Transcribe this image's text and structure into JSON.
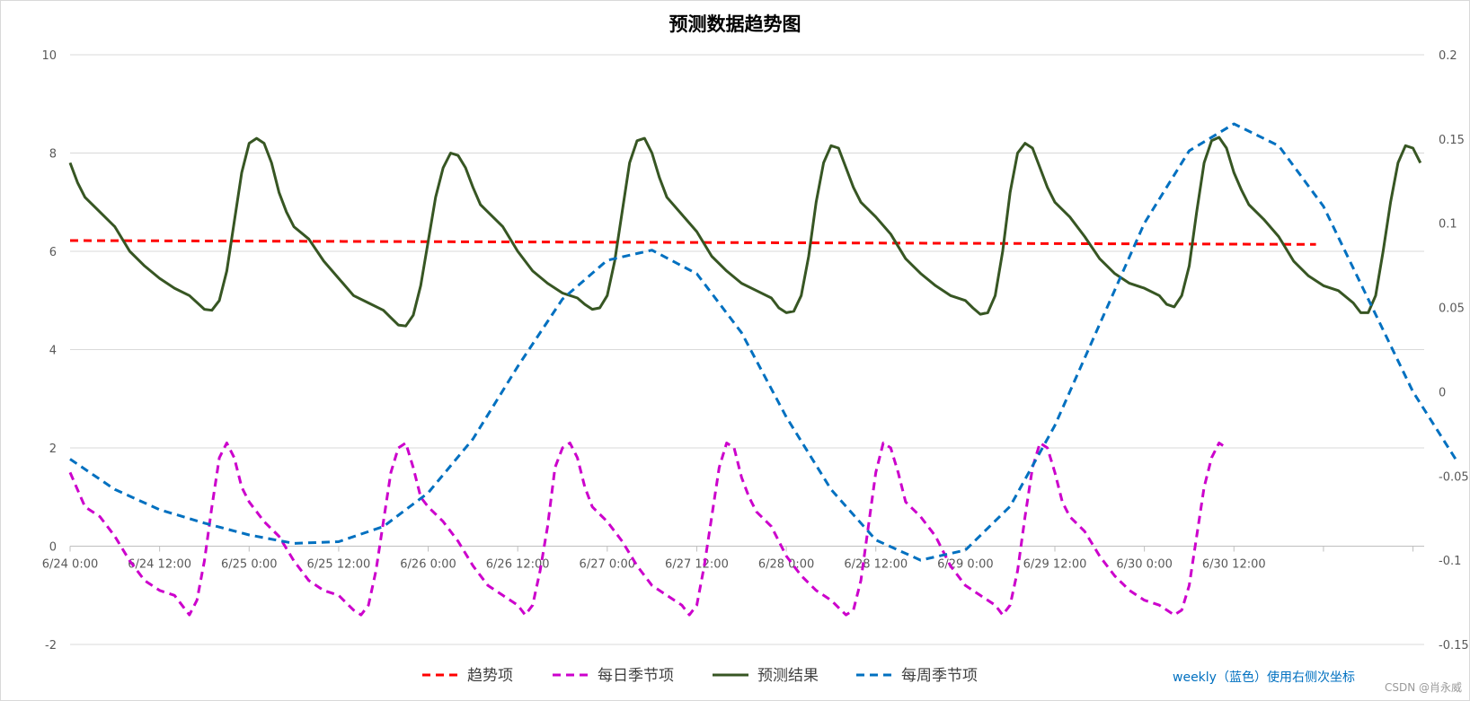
{
  "chart_data": {
    "type": "line",
    "title": "预测数据趋势图",
    "x_tick_labels": [
      "6/24 0:00",
      "6/24 12:00",
      "6/25 0:00",
      "6/25 12:00",
      "6/26 0:00",
      "6/26 12:00",
      "6/27 0:00",
      "6/27 12:00",
      "6/28 0:00",
      "6/28 12:00",
      "6/29 0:00",
      "6/29 12:00",
      "6/30 0:00",
      "6/30 12:00"
    ],
    "x_range_hours": [
      0,
      167
    ],
    "y_left": {
      "range": [
        -2,
        10
      ],
      "ticks": [
        "-2",
        "0",
        "2",
        "4",
        "6",
        "8",
        "10"
      ]
    },
    "y_right": {
      "range": [
        -0.15,
        0.2
      ],
      "ticks": [
        "-0.15",
        "-0.1",
        "-0.05",
        "0",
        "0.05",
        "0.1",
        "0.15",
        "0.2"
      ]
    },
    "grid": true,
    "legend_position": "bottom",
    "series": [
      {
        "name": "趋势项",
        "color": "#ff0000",
        "dash": "dashed",
        "axis": "left",
        "points": [
          [
            0,
            6.22
          ],
          [
            167,
            6.14
          ]
        ]
      },
      {
        "name": "每日季节项",
        "color": "#cc00cc",
        "dash": "dashed",
        "axis": "left",
        "points": [
          [
            0,
            1.5
          ],
          [
            2,
            0.8
          ],
          [
            4,
            0.6
          ],
          [
            6,
            0.2
          ],
          [
            8,
            -0.3
          ],
          [
            10,
            -0.7
          ],
          [
            12,
            -0.9
          ],
          [
            14,
            -1.0
          ],
          [
            15,
            -1.2
          ],
          [
            16,
            -1.4
          ],
          [
            17,
            -1.1
          ],
          [
            18,
            -0.3
          ],
          [
            19,
            0.8
          ],
          [
            20,
            1.8
          ],
          [
            21,
            2.1
          ],
          [
            22,
            1.8
          ],
          [
            23,
            1.2
          ],
          [
            24,
            0.9
          ],
          [
            26,
            0.5
          ],
          [
            28,
            0.2
          ],
          [
            30,
            -0.3
          ],
          [
            32,
            -0.7
          ],
          [
            34,
            -0.9
          ],
          [
            36,
            -1.0
          ],
          [
            38,
            -1.3
          ],
          [
            39,
            -1.4
          ],
          [
            40,
            -1.2
          ],
          [
            41,
            -0.5
          ],
          [
            42,
            0.5
          ],
          [
            43,
            1.5
          ],
          [
            44,
            2.0
          ],
          [
            45,
            2.1
          ],
          [
            46,
            1.6
          ],
          [
            47,
            1.0
          ],
          [
            48,
            0.8
          ],
          [
            50,
            0.5
          ],
          [
            52,
            0.1
          ],
          [
            54,
            -0.4
          ],
          [
            56,
            -0.8
          ],
          [
            58,
            -1.0
          ],
          [
            60,
            -1.2
          ],
          [
            61,
            -1.4
          ],
          [
            62,
            -1.2
          ],
          [
            63,
            -0.5
          ],
          [
            64,
            0.4
          ],
          [
            65,
            1.6
          ],
          [
            66,
            2.0
          ],
          [
            67,
            2.1
          ],
          [
            68,
            1.8
          ],
          [
            69,
            1.2
          ],
          [
            70,
            0.8
          ],
          [
            72,
            0.5
          ],
          [
            74,
            0.1
          ],
          [
            76,
            -0.4
          ],
          [
            78,
            -0.8
          ],
          [
            80,
            -1.0
          ],
          [
            82,
            -1.2
          ],
          [
            83,
            -1.4
          ],
          [
            84,
            -1.2
          ],
          [
            85,
            -0.4
          ],
          [
            86,
            0.6
          ],
          [
            87,
            1.6
          ],
          [
            88,
            2.1
          ],
          [
            89,
            2.0
          ],
          [
            90,
            1.4
          ],
          [
            91,
            1.0
          ],
          [
            92,
            0.7
          ],
          [
            94,
            0.4
          ],
          [
            96,
            -0.2
          ],
          [
            98,
            -0.6
          ],
          [
            100,
            -0.9
          ],
          [
            102,
            -1.1
          ],
          [
            104,
            -1.4
          ],
          [
            105,
            -1.3
          ],
          [
            106,
            -0.7
          ],
          [
            107,
            0.4
          ],
          [
            108,
            1.5
          ],
          [
            109,
            2.1
          ],
          [
            110,
            2.0
          ],
          [
            111,
            1.5
          ],
          [
            112,
            0.9
          ],
          [
            114,
            0.6
          ],
          [
            116,
            0.2
          ],
          [
            118,
            -0.4
          ],
          [
            120,
            -0.8
          ],
          [
            122,
            -1.0
          ],
          [
            124,
            -1.2
          ],
          [
            125,
            -1.4
          ],
          [
            126,
            -1.2
          ],
          [
            127,
            -0.5
          ],
          [
            128,
            0.6
          ],
          [
            129,
            1.6
          ],
          [
            130,
            2.1
          ],
          [
            131,
            2.0
          ],
          [
            132,
            1.5
          ],
          [
            133,
            0.9
          ],
          [
            134,
            0.6
          ],
          [
            136,
            0.3
          ],
          [
            138,
            -0.2
          ],
          [
            140,
            -0.6
          ],
          [
            142,
            -0.9
          ],
          [
            144,
            -1.1
          ],
          [
            146,
            -1.2
          ],
          [
            148,
            -1.4
          ],
          [
            149,
            -1.3
          ],
          [
            150,
            -0.8
          ],
          [
            151,
            0.2
          ],
          [
            152,
            1.2
          ],
          [
            153,
            1.8
          ],
          [
            154,
            2.1
          ],
          [
            155,
            2.0
          ]
        ]
      },
      {
        "name": "预测结果",
        "color": "#375623",
        "dash": "solid",
        "axis": "left",
        "points": [
          [
            0,
            7.8
          ],
          [
            1,
            7.4
          ],
          [
            2,
            7.1
          ],
          [
            4,
            6.8
          ],
          [
            6,
            6.5
          ],
          [
            8,
            6.0
          ],
          [
            10,
            5.7
          ],
          [
            12,
            5.45
          ],
          [
            14,
            5.25
          ],
          [
            16,
            5.1
          ],
          [
            18,
            4.82
          ],
          [
            19,
            4.8
          ],
          [
            20,
            5.0
          ],
          [
            21,
            5.6
          ],
          [
            22,
            6.6
          ],
          [
            23,
            7.6
          ],
          [
            24,
            8.2
          ],
          [
            25,
            8.3
          ],
          [
            26,
            8.2
          ],
          [
            27,
            7.8
          ],
          [
            28,
            7.2
          ],
          [
            29,
            6.8
          ],
          [
            30,
            6.5
          ],
          [
            32,
            6.25
          ],
          [
            34,
            5.8
          ],
          [
            36,
            5.45
          ],
          [
            38,
            5.1
          ],
          [
            40,
            4.95
          ],
          [
            42,
            4.8
          ],
          [
            43,
            4.65
          ],
          [
            44,
            4.5
          ],
          [
            45,
            4.48
          ],
          [
            46,
            4.7
          ],
          [
            47,
            5.3
          ],
          [
            48,
            6.2
          ],
          [
            49,
            7.1
          ],
          [
            50,
            7.7
          ],
          [
            51,
            8.0
          ],
          [
            52,
            7.95
          ],
          [
            53,
            7.7
          ],
          [
            54,
            7.3
          ],
          [
            55,
            6.95
          ],
          [
            56,
            6.8
          ],
          [
            58,
            6.5
          ],
          [
            60,
            6.0
          ],
          [
            62,
            5.6
          ],
          [
            64,
            5.35
          ],
          [
            66,
            5.15
          ],
          [
            68,
            5.05
          ],
          [
            69,
            4.92
          ],
          [
            70,
            4.82
          ],
          [
            71,
            4.85
          ],
          [
            72,
            5.1
          ],
          [
            73,
            5.8
          ],
          [
            74,
            6.8
          ],
          [
            75,
            7.8
          ],
          [
            76,
            8.25
          ],
          [
            77,
            8.3
          ],
          [
            78,
            8.0
          ],
          [
            79,
            7.5
          ],
          [
            80,
            7.1
          ],
          [
            82,
            6.75
          ],
          [
            84,
            6.4
          ],
          [
            86,
            5.9
          ],
          [
            88,
            5.6
          ],
          [
            90,
            5.35
          ],
          [
            92,
            5.2
          ],
          [
            94,
            5.05
          ],
          [
            95,
            4.85
          ],
          [
            96,
            4.75
          ],
          [
            97,
            4.78
          ],
          [
            98,
            5.1
          ],
          [
            99,
            5.9
          ],
          [
            100,
            7.0
          ],
          [
            101,
            7.8
          ],
          [
            102,
            8.15
          ],
          [
            103,
            8.1
          ],
          [
            104,
            7.7
          ],
          [
            105,
            7.3
          ],
          [
            106,
            7.0
          ],
          [
            108,
            6.7
          ],
          [
            110,
            6.35
          ],
          [
            112,
            5.85
          ],
          [
            114,
            5.55
          ],
          [
            116,
            5.3
          ],
          [
            118,
            5.1
          ],
          [
            120,
            5.0
          ],
          [
            121,
            4.85
          ],
          [
            122,
            4.72
          ],
          [
            123,
            4.75
          ],
          [
            124,
            5.1
          ],
          [
            125,
            6.0
          ],
          [
            126,
            7.2
          ],
          [
            127,
            8.0
          ],
          [
            128,
            8.2
          ],
          [
            129,
            8.1
          ],
          [
            130,
            7.7
          ],
          [
            131,
            7.3
          ],
          [
            132,
            7.0
          ],
          [
            134,
            6.7
          ],
          [
            136,
            6.3
          ],
          [
            138,
            5.85
          ],
          [
            140,
            5.55
          ],
          [
            142,
            5.35
          ],
          [
            144,
            5.25
          ],
          [
            146,
            5.1
          ],
          [
            147,
            4.92
          ],
          [
            148,
            4.87
          ],
          [
            149,
            5.1
          ],
          [
            150,
            5.7
          ],
          [
            151,
            6.8
          ],
          [
            152,
            7.8
          ],
          [
            153,
            8.25
          ],
          [
            154,
            8.32
          ],
          [
            155,
            8.1
          ],
          [
            156,
            7.6
          ],
          [
            157,
            7.25
          ],
          [
            158,
            6.95
          ],
          [
            160,
            6.65
          ],
          [
            162,
            6.3
          ],
          [
            164,
            5.8
          ],
          [
            166,
            5.5
          ],
          [
            168,
            5.3
          ],
          [
            170,
            5.2
          ],
          [
            172,
            4.95
          ],
          [
            173,
            4.75
          ],
          [
            174,
            4.75
          ],
          [
            175,
            5.1
          ],
          [
            176,
            6.0
          ],
          [
            177,
            7.0
          ],
          [
            178,
            7.8
          ],
          [
            179,
            8.15
          ],
          [
            180,
            8.1
          ],
          [
            181,
            7.8
          ]
        ]
      },
      {
        "name": "每周季节项",
        "color": "#0070c0",
        "dash": "dashed",
        "axis": "right",
        "points": [
          [
            0,
            -0.04
          ],
          [
            6,
            -0.058
          ],
          [
            12,
            -0.07
          ],
          [
            18,
            -0.078
          ],
          [
            24,
            -0.085
          ],
          [
            30,
            -0.09
          ],
          [
            36,
            -0.089
          ],
          [
            42,
            -0.08
          ],
          [
            48,
            -0.06
          ],
          [
            54,
            -0.028
          ],
          [
            60,
            0.015
          ],
          [
            66,
            0.055
          ],
          [
            72,
            0.078
          ],
          [
            78,
            0.084
          ],
          [
            84,
            0.07
          ],
          [
            90,
            0.035
          ],
          [
            96,
            -0.015
          ],
          [
            102,
            -0.058
          ],
          [
            108,
            -0.088
          ],
          [
            114,
            -0.1
          ],
          [
            120,
            -0.094
          ],
          [
            126,
            -0.068
          ],
          [
            132,
            -0.02
          ],
          [
            138,
            0.04
          ],
          [
            144,
            0.1
          ],
          [
            150,
            0.143
          ],
          [
            156,
            0.159
          ],
          [
            162,
            0.146
          ],
          [
            168,
            0.11
          ],
          [
            174,
            0.055
          ],
          [
            180,
            0.0
          ],
          [
            186,
            -0.042
          ]
        ]
      }
    ]
  },
  "legend_items": [
    "趋势项",
    "每日季节项",
    "预测结果",
    "每周季节项"
  ],
  "note": "weekly（蓝色）使用右侧次坐标",
  "watermark": "CSDN @肖永威"
}
